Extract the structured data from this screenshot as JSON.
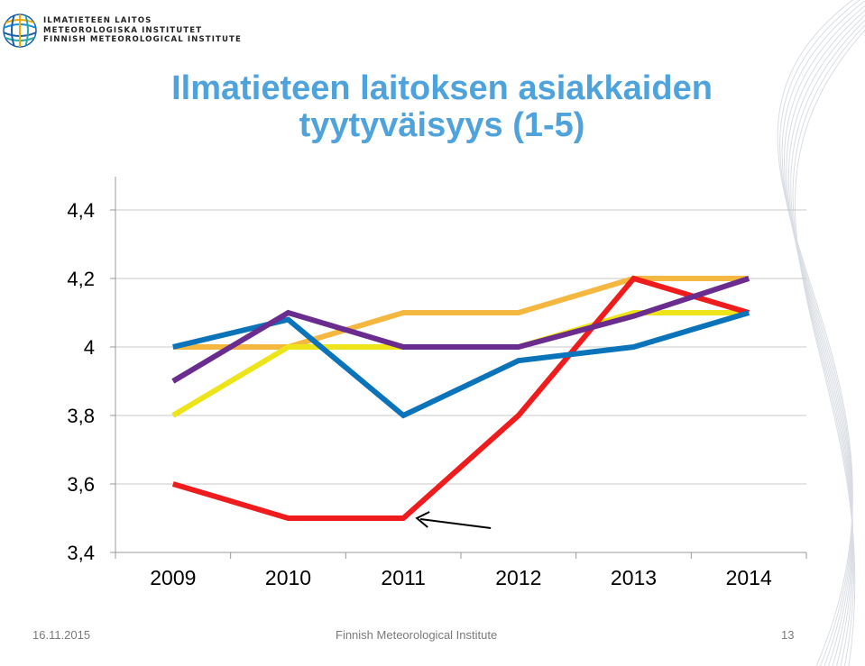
{
  "logo": {
    "lines": [
      "ILMATIETEEN LAITOS",
      "METEOROLOGISKA INSTITUTET",
      "FINNISH METEOROLOGICAL INSTITUTE"
    ]
  },
  "title": {
    "line1": "Ilmatieteen laitoksen asiakkaiden",
    "line2": "tyytyväisyys (1-5)"
  },
  "footer": {
    "date": "16.11.2015",
    "organization": "Finnish Meteorological Institute",
    "page": "13"
  },
  "colors": {
    "title": "#4fa3dc",
    "red": "#ee1c1c",
    "blue": "#0b73b9",
    "purple": "#6a2c8e",
    "orange": "#f4b740",
    "yellow": "#ede51a"
  },
  "chart_data": {
    "type": "line",
    "categories": [
      "2009",
      "2010",
      "2011",
      "2012",
      "2013",
      "2014"
    ],
    "ylim": [
      3.4,
      4.4
    ],
    "yticks": [
      "3,4",
      "3,6",
      "3,8",
      "4",
      "4,2",
      "4,4"
    ],
    "ytick_values": [
      3.4,
      3.6,
      3.8,
      4.0,
      4.2,
      4.4
    ],
    "grid": true,
    "legend": "none",
    "series": [
      {
        "color": "#f4b740",
        "values": [
          4.0,
          4.0,
          4.1,
          4.1,
          4.2,
          4.2
        ]
      },
      {
        "color": "#ede51a",
        "values": [
          3.8,
          4.0,
          4.0,
          4.0,
          4.1,
          4.1
        ]
      },
      {
        "color": "#ee1c1c",
        "values": [
          3.6,
          3.5,
          3.5,
          3.8,
          4.2,
          4.1
        ]
      },
      {
        "color": "#0b73b9",
        "values": [
          4.0,
          4.08,
          3.8,
          3.96,
          4.0,
          4.1
        ]
      },
      {
        "color": "#6a2c8e",
        "values": [
          3.9,
          4.1,
          4.0,
          4.0,
          4.09,
          4.2
        ]
      }
    ],
    "annotation": {
      "type": "arrow",
      "points_to": {
        "category": "2011",
        "value": 3.5
      }
    }
  }
}
